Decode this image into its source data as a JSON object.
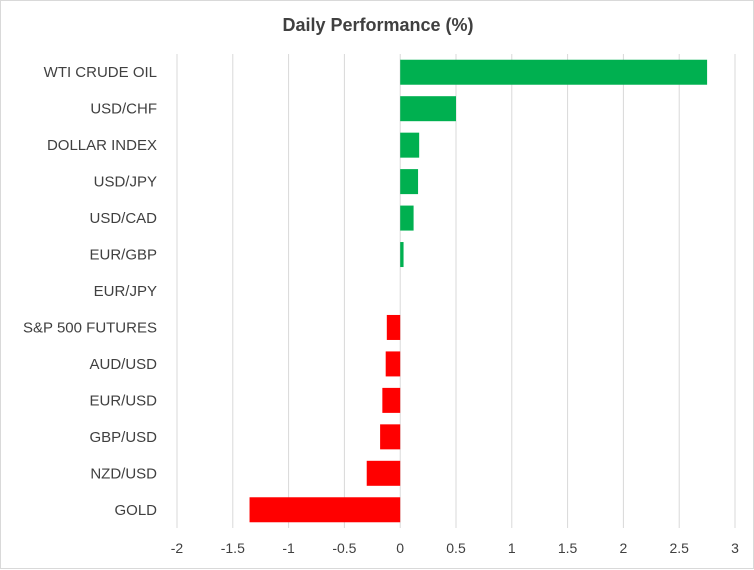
{
  "chart_data": {
    "type": "bar",
    "orientation": "horizontal",
    "title": "Daily Performance (%)",
    "categories": [
      "WTI CRUDE OIL",
      "USD/CHF",
      "DOLLAR INDEX",
      "USD/JPY",
      "USD/CAD",
      "EUR/GBP",
      "EUR/JPY",
      "S&P 500 FUTURES",
      "AUD/USD",
      "EUR/USD",
      "GBP/USD",
      "NZD/USD",
      "GOLD"
    ],
    "values": [
      2.75,
      0.5,
      0.17,
      0.16,
      0.12,
      0.03,
      0.0,
      -0.12,
      -0.13,
      -0.16,
      -0.18,
      -0.3,
      -1.35
    ],
    "xlim": [
      -2,
      3
    ],
    "xticks": [
      "-2",
      "-1.5",
      "-1",
      "-0.5",
      "0",
      "0.5",
      "1",
      "1.5",
      "2",
      "2.5",
      "3"
    ],
    "grid": true,
    "colors": {
      "positive": "#00b050",
      "negative": "#ff0000",
      "grid": "#d9d9d9",
      "text": "#404040"
    }
  }
}
